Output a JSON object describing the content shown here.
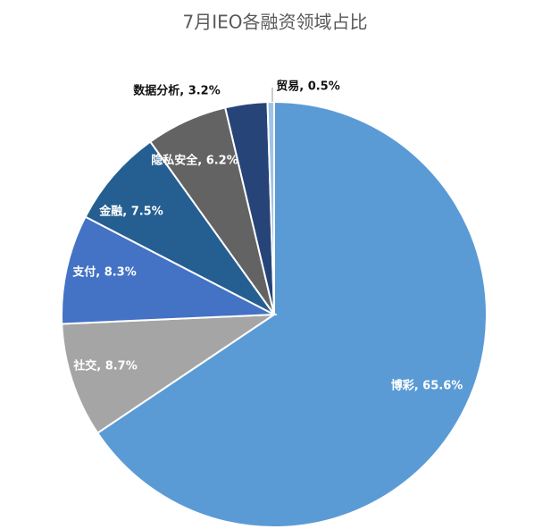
{
  "chart_data": {
    "type": "pie",
    "title": "7月IEO各融资领域占比",
    "values": [
      65.6,
      8.7,
      8.3,
      7.5,
      6.2,
      3.2,
      0.5
    ],
    "value_labels": [
      "博彩, 65.6%",
      "社交, 8.7%",
      "支付, 8.3%",
      "金融, 7.5%",
      "隐私安全, 6.2%",
      "数据分析, 3.2%",
      "贸易, 0.5%"
    ],
    "colors": [
      "#5b9bd5",
      "#a5a5a5",
      "#4472c4",
      "#255e91",
      "#636363",
      "#264478",
      "#9dc3e6"
    ]
  }
}
